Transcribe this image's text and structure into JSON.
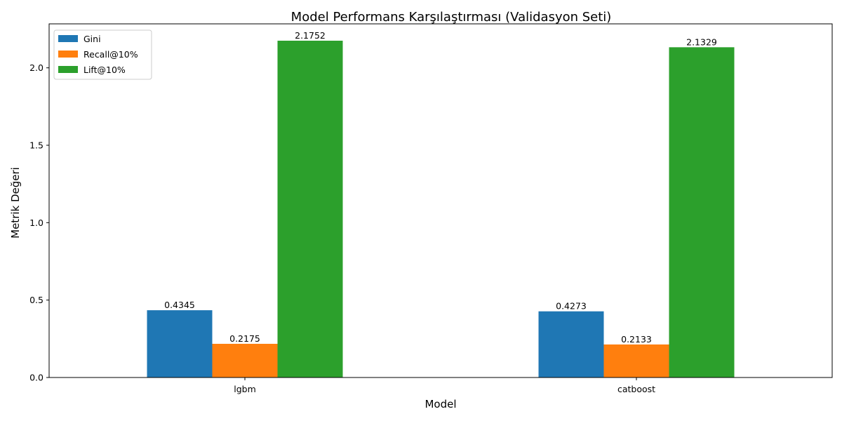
{
  "chart_data": {
    "type": "bar",
    "title": "Model Performans Karşılaştırması (Validasyon Seti)",
    "xlabel": "Model",
    "ylabel": "Metrik Değeri",
    "categories": [
      "lgbm",
      "catboost"
    ],
    "series": [
      {
        "name": "Gini",
        "values": [
          0.4345,
          0.4273
        ],
        "labels": [
          "0.4345",
          "0.4273"
        ],
        "color": "#1f77b4"
      },
      {
        "name": "Recall@10%",
        "values": [
          0.2175,
          0.2133
        ],
        "labels": [
          "0.2175",
          "0.2133"
        ],
        "color": "#ff7f0e"
      },
      {
        "name": "Lift@10%",
        "values": [
          2.1752,
          2.1329
        ],
        "labels": [
          "2.1752",
          "2.1329"
        ],
        "color": "#2ca02c"
      }
    ],
    "ylim": [
      0,
      2.284
    ],
    "yticks": [
      0.0,
      0.5,
      1.0,
      1.5,
      2.0
    ],
    "ytick_labels": [
      "0.0",
      "0.5",
      "1.0",
      "1.5",
      "2.0"
    ],
    "grid": false,
    "legend_position": "top-left"
  }
}
